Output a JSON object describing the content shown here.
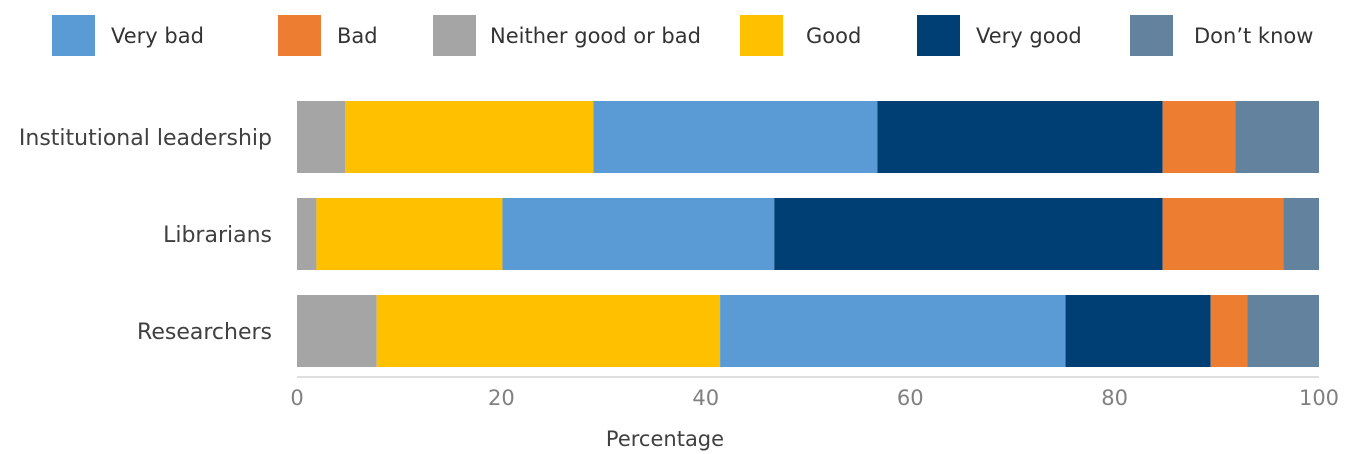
{
  "chart_data": {
    "type": "bar",
    "orientation": "horizontal",
    "stacked": true,
    "title": "",
    "xlabel": "Percentage",
    "ylabel": "",
    "xlim": [
      0,
      100
    ],
    "x_ticks": [
      0,
      20,
      40,
      60,
      80,
      100
    ],
    "grid": false,
    "legend_position": "top",
    "categories": [
      "Institutional leadership",
      "Librarians",
      "Researchers"
    ],
    "legend_order": [
      "Very bad",
      "Bad",
      "Neither good or bad",
      "Good",
      "Very good",
      "Don’t know"
    ],
    "series": [
      {
        "name": "Neither good or bad",
        "color": "#a5a5a5",
        "values": [
          4.7,
          1.9,
          7.8
        ]
      },
      {
        "name": "Good",
        "color": "#ffc000",
        "values": [
          24.3,
          18.2,
          33.6
        ]
      },
      {
        "name": "Very bad",
        "color": "#5b9bd5",
        "values": [
          27.8,
          26.6,
          33.8
        ]
      },
      {
        "name": "Very good",
        "color": "#003f74",
        "values": [
          27.9,
          38.0,
          14.2
        ]
      },
      {
        "name": "Bad",
        "color": "#ed7d31",
        "values": [
          7.1,
          11.8,
          3.6
        ]
      },
      {
        "name": "Don’t know",
        "color": "#62829d",
        "values": [
          8.2,
          3.5,
          7.0
        ]
      }
    ]
  }
}
